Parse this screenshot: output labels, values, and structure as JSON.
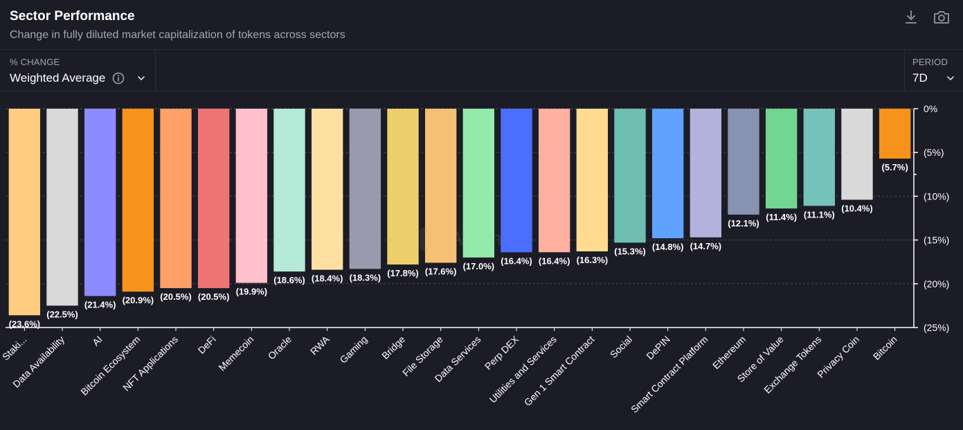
{
  "header": {
    "title": "Sector Performance",
    "subtitle": "Change in fully diluted market capitalization of tokens across sectors",
    "download_icon": "download-icon",
    "camera_icon": "camera-icon"
  },
  "controls": {
    "metric_label": "% CHANGE",
    "metric_value": "Weighted Average",
    "period_label": "PERIOD",
    "period_value": "7D"
  },
  "watermark": "Artemis",
  "chart_data": {
    "type": "bar",
    "categories": [
      "Staki...",
      "Data Availability",
      "AI",
      "Bitcoin Ecosystem",
      "NFT Applications",
      "DeFi",
      "Memecoin",
      "Oracle",
      "RWA",
      "Gaming",
      "Bridge",
      "File Storage",
      "Data Services",
      "Perp DEX",
      "Utilities and Services",
      "Gen 1 Smart Contract",
      "Social",
      "DePIN",
      "Smart Contract Platform",
      "Ethereum",
      "Store of Value",
      "Exchange Tokens",
      "Privacy Coin",
      "Bitcoin"
    ],
    "values": [
      -23.6,
      -22.5,
      -21.4,
      -20.9,
      -20.5,
      -20.5,
      -19.9,
      -18.6,
      -18.4,
      -18.3,
      -17.8,
      -17.6,
      -17.0,
      -16.4,
      -16.4,
      -16.3,
      -15.3,
      -14.8,
      -14.7,
      -12.1,
      -11.4,
      -11.1,
      -10.4,
      -5.7
    ],
    "labels": [
      "(23.6%)",
      "(22.5%)",
      "(21.4%)",
      "(20.9%)",
      "(20.5%)",
      "(20.5%)",
      "(19.9%)",
      "(18.6%)",
      "(18.4%)",
      "(18.3%)",
      "(17.8%)",
      "(17.6%)",
      "(17.0%)",
      "(16.4%)",
      "(16.4%)",
      "(16.3%)",
      "(15.3%)",
      "(14.8%)",
      "(14.7%)",
      "(12.1%)",
      "(11.4%)",
      "(11.1%)",
      "(10.4%)",
      "(5.7%)"
    ],
    "colors": [
      "#ffcc80",
      "#d9d9d9",
      "#8c8cff",
      "#f7931a",
      "#ffa066",
      "#ef7575",
      "#ffc0cb",
      "#b3ead8",
      "#ffe0a3",
      "#9a9aaf",
      "#edcf6b",
      "#f5c074",
      "#92ebaa",
      "#4b6eff",
      "#ffb0a0",
      "#ffdb8f",
      "#6ebfb2",
      "#5fa2ff",
      "#b2b2dc",
      "#8892b2",
      "#72d692",
      "#74c2ba",
      "#d9d9d9",
      "#f7931a"
    ],
    "ylim": [
      -25,
      0
    ],
    "yticks": [
      0,
      -5,
      -10,
      -15,
      -20,
      -25
    ],
    "ytick_labels": [
      "0%",
      "(5%)",
      "(10%)",
      "(15%)",
      "(20%)",
      "(25%)"
    ],
    "grid": true
  }
}
